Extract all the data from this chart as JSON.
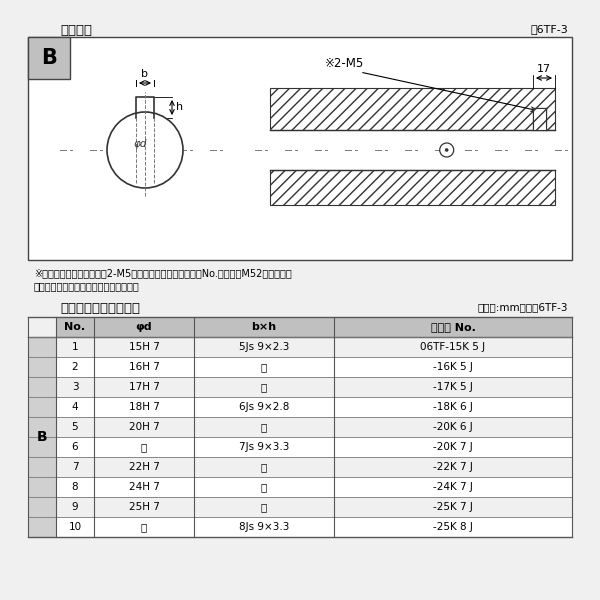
{
  "title_top": "軸穴形状",
  "fig_label_top": "囶6TF-3",
  "note_line1": "※セットボルト用タップ（2-M5）が必要な場合は右記コーNo.の末尾にM52を付ける。",
  "note_line2": "（セットボルトは付属されています。）",
  "table_title": "軸穴形状コード一覧表",
  "table_unit": "（単位:mm）　表6TF-3",
  "col_headers": [
    "No.",
    "φd",
    "b×h",
    "コード No."
  ],
  "row_label": "B",
  "rows": [
    [
      "1",
      "15H 7",
      "5Js 9×2.3",
      "06TF-15K 5 J"
    ],
    [
      "2",
      "16H 7",
      "〃",
      "-16K 5 J"
    ],
    [
      "3",
      "17H 7",
      "〃",
      "-17K 5 J"
    ],
    [
      "4",
      "18H 7",
      "6Js 9×2.8",
      "-18K 6 J"
    ],
    [
      "5",
      "20H 7",
      "〃",
      "-20K 6 J"
    ],
    [
      "6",
      "〃",
      "7Js 9×3.3",
      "-20K 7 J"
    ],
    [
      "7",
      "22H 7",
      "〃",
      "-22K 7 J"
    ],
    [
      "8",
      "24H 7",
      "〃",
      "-24K 7 J"
    ],
    [
      "9",
      "25H 7",
      "〃",
      "-25K 7 J"
    ],
    [
      "10",
      "〃",
      "8Js 9×3.3",
      "-25K 8 J"
    ]
  ],
  "bg_color": "#f0f0f0",
  "box_bg": "#ffffff",
  "border_color": "#000000",
  "header_bg": "#b0b0b0",
  "text_color": "#000000",
  "b_label_bg": "#c0c0c0"
}
